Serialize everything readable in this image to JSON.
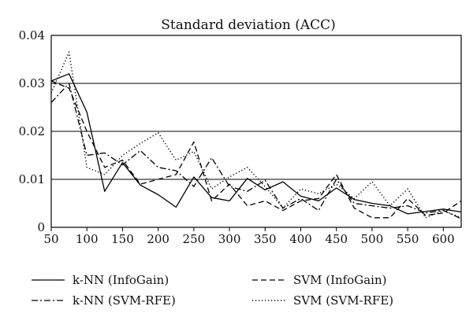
{
  "chart_data": {
    "type": "line",
    "title": "Standard deviation (ACC)",
    "xlabel": "",
    "ylabel": "",
    "xlim": [
      50,
      625
    ],
    "ylim": [
      0,
      0.04
    ],
    "x_ticks": [
      50,
      100,
      150,
      200,
      250,
      300,
      350,
      400,
      450,
      500,
      550,
      600
    ],
    "x_tick_labels": [
      "50",
      "100",
      "150",
      "200",
      "250",
      "300",
      "350",
      "400",
      "450",
      "500",
      "550",
      "600"
    ],
    "y_ticks": [
      0,
      0.01,
      0.02,
      0.03,
      0.04
    ],
    "y_tick_labels": [
      "0",
      "0.01",
      "0.02",
      "0.03",
      "0.04"
    ],
    "grid": "horizontal",
    "legend_position": "bottom",
    "x": [
      50,
      75,
      100,
      125,
      150,
      175,
      200,
      225,
      250,
      275,
      300,
      325,
      350,
      375,
      400,
      425,
      450,
      475,
      500,
      525,
      550,
      575,
      600,
      625
    ],
    "series": [
      {
        "name": "k-NN (InfoGain)",
        "style": "solid",
        "values": [
          0.0305,
          0.032,
          0.024,
          0.0075,
          0.0135,
          0.0088,
          0.0068,
          0.0042,
          0.0105,
          0.0062,
          0.0055,
          0.0102,
          0.0078,
          0.0095,
          0.0065,
          0.0055,
          0.0082,
          0.0058,
          0.005,
          0.0045,
          0.0028,
          0.0033,
          0.0038,
          0.0032
        ]
      },
      {
        "name": "SVM (InfoGain)",
        "style": "dashed",
        "values": [
          0.0305,
          0.029,
          0.02,
          0.0125,
          0.014,
          0.009,
          0.01,
          0.011,
          0.0178,
          0.0055,
          0.009,
          0.0045,
          0.0055,
          0.0035,
          0.0055,
          0.006,
          0.011,
          0.004,
          0.002,
          0.002,
          0.006,
          0.0025,
          0.003,
          0.0055
        ]
      },
      {
        "name": "k-NN (SVM-RFE)",
        "style": "dashdot",
        "values": [
          0.026,
          0.03,
          0.015,
          0.0155,
          0.013,
          0.016,
          0.0125,
          0.0118,
          0.0085,
          0.0145,
          0.0085,
          0.0075,
          0.0098,
          0.004,
          0.006,
          0.0035,
          0.01,
          0.005,
          0.0045,
          0.004,
          0.0045,
          0.003,
          0.0035,
          0.0018
        ]
      },
      {
        "name": "SVM (SVM-RFE)",
        "style": "dotted",
        "values": [
          0.028,
          0.0365,
          0.0125,
          0.011,
          0.015,
          0.0175,
          0.0197,
          0.014,
          0.0158,
          0.008,
          0.0105,
          0.0125,
          0.0085,
          0.004,
          0.008,
          0.007,
          0.009,
          0.006,
          0.0095,
          0.0045,
          0.008,
          0.002,
          0.0035,
          0.002
        ]
      }
    ]
  }
}
